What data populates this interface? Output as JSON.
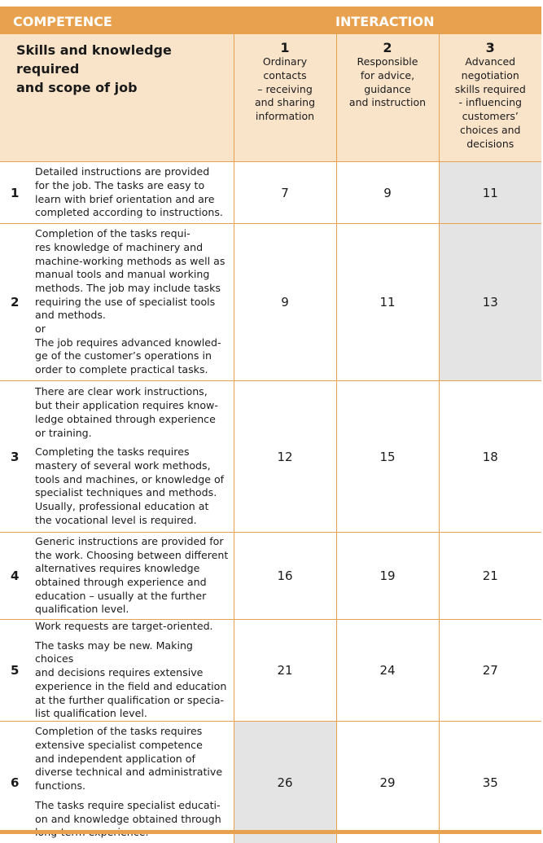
{
  "header": {
    "competence": "COMPETENCE",
    "interaction": "INTERACTION",
    "row_header": "Skills and knowledge required\nand scope of job",
    "levels": [
      {
        "number": "1",
        "label": "Ordinary\ncontacts\n– receiving\nand sharing\ninformation"
      },
      {
        "number": "2",
        "label": "Responsible\nfor advice,\nguidance\nand instruction"
      },
      {
        "number": "3",
        "label": "Advanced\nnegotiation\nskills required\n- influencing\ncustomers’\nchoices and\ndecisions"
      }
    ]
  },
  "colors": {
    "accent": "#E8A24F",
    "header_bg": "#F9E4CA",
    "highlight": "#E4E4E4"
  },
  "rows": [
    {
      "level": "1",
      "paragraphs": [
        "Detailed instructions are provided\nfor the job. The tasks are easy to\nlearn with brief orientation and are\ncompleted according to instructions."
      ],
      "values": [
        "7",
        "9",
        "11"
      ],
      "highlighted": [
        false,
        false,
        true
      ]
    },
    {
      "level": "2",
      "paragraphs": [
        "Completion of the tasks requi-\nres knowledge of machinery and\nmachine-working methods as well as\nmanual tools and manual working\nmethods. The job may include tasks\nrequiring the use of specialist tools\nand methods.\nor\nThe job requires advanced knowled-\nge of the customer’s operations in\norder to complete practical tasks."
      ],
      "values": [
        "9",
        "11",
        "13"
      ],
      "highlighted": [
        false,
        false,
        true
      ]
    },
    {
      "level": "3",
      "paragraphs": [
        "There are clear work instructions,\nbut their application requires know-\nledge obtained through experience\nor training.",
        "Completing the tasks requires\nmastery of several work methods,\ntools and machines, or knowledge of\nspecialist techniques and methods.\nUsually, professional education at\nthe vocational level is required."
      ],
      "values": [
        "12",
        "15",
        "18"
      ],
      "highlighted": [
        false,
        false,
        false
      ]
    },
    {
      "level": "4",
      "paragraphs": [
        "Generic instructions are provided for\nthe work. Choosing between different\nalternatives requires knowledge\nobtained through experience and\neducation – usually at the further\nqualification level."
      ],
      "values": [
        "16",
        "19",
        "21"
      ],
      "highlighted": [
        false,
        false,
        false
      ]
    },
    {
      "level": "5",
      "paragraphs": [
        "Work requests are target-oriented.",
        "The tasks may be new. Making choices\nand decisions requires extensive\nexperience in the field and education\nat the further qualification or specia-\nlist qualification level."
      ],
      "values": [
        "21",
        "24",
        "27"
      ],
      "highlighted": [
        false,
        false,
        false
      ]
    },
    {
      "level": "6",
      "paragraphs": [
        "Completion of the tasks requires\nextensive specialist competence\nand independent application of\ndiverse technical and administrative\nfunctions.",
        "The tasks require specialist educati-\non and knowledge obtained through\nlong-term experience."
      ],
      "values": [
        "26",
        "29",
        "35"
      ],
      "highlighted": [
        true,
        false,
        false
      ]
    }
  ]
}
